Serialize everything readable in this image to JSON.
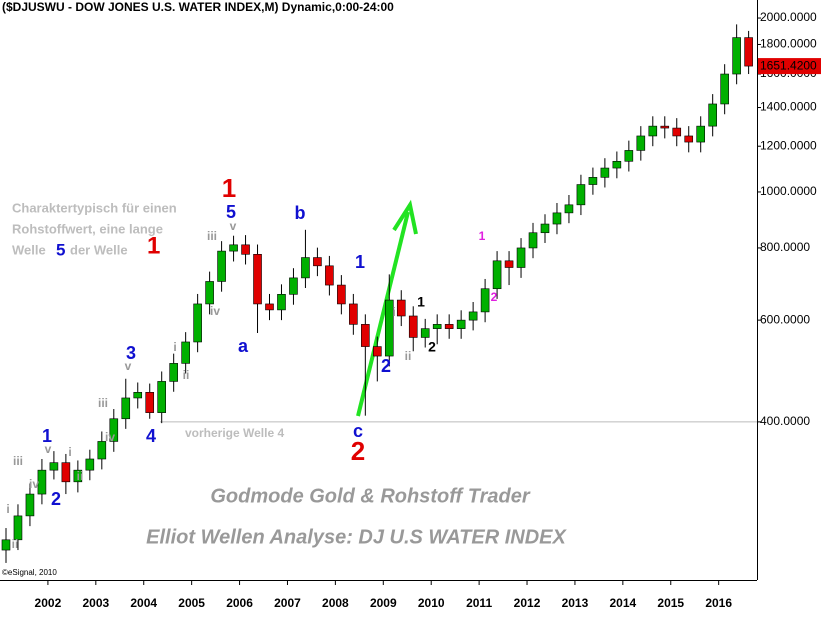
{
  "chart_data": {
    "type": "candlestick",
    "title": "($DJUSWU - DOW JONES U.S. WATER INDEX,M) Dynamic,0:00-24:00",
    "copyright": "©eSignal, 2010",
    "log_scale": true,
    "grid": false,
    "up_color": "#00b000",
    "down_color": "#e00000",
    "x": [
      2001.125,
      2001.375,
      2001.625,
      2001.875,
      2002.125,
      2002.375,
      2002.625,
      2002.875,
      2003.125,
      2003.375,
      2003.625,
      2003.875,
      2004.125,
      2004.375,
      2004.625,
      2004.875,
      2005.125,
      2005.375,
      2005.625,
      2005.875,
      2006.125,
      2006.375,
      2006.625,
      2006.875,
      2007.125,
      2007.375,
      2007.625,
      2007.875,
      2008.125,
      2008.375,
      2008.625,
      2008.875,
      2009.125,
      2009.375,
      2009.625,
      2009.875,
      2010.125,
      2010.375,
      2010.625,
      2010.875,
      2011.125,
      2011.375,
      2011.625,
      2011.875,
      2012.125,
      2012.375,
      2012.625,
      2012.875,
      2013.125,
      2013.375,
      2013.625,
      2013.875,
      2014.125,
      2014.375,
      2014.625,
      2014.875,
      2015.125,
      2015.375,
      2015.625,
      2015.875,
      2016.125,
      2016.375,
      2016.625
    ],
    "open": [
      240,
      250,
      275,
      300,
      330,
      340,
      315,
      330,
      345,
      370,
      405,
      440,
      450,
      415,
      470,
      505,
      550,
      640,
      700,
      790,
      810,
      780,
      640,
      625,
      665,
      710,
      770,
      745,
      690,
      640,
      590,
      540,
      520,
      650,
      610,
      560,
      580,
      590,
      580,
      600,
      620,
      680,
      760,
      740,
      800,
      850,
      880,
      920,
      950,
      1030,
      1060,
      1100,
      1130,
      1180,
      1250,
      1300,
      1290,
      1250,
      1220,
      1300,
      1420,
      1600,
      1850
    ],
    "high": [
      262,
      288,
      313,
      345,
      356,
      352,
      343,
      358,
      385,
      421,
      475,
      468,
      466,
      489,
      525,
      572,
      666,
      728,
      822,
      840,
      842,
      811,
      666,
      692,
      738,
      860,
      801,
      775,
      718,
      666,
      614,
      562,
      720,
      676,
      634,
      603,
      614,
      614,
      624,
      645,
      707,
      790,
      790,
      832,
      884,
      915,
      957,
      988,
      1071,
      1102,
      1144,
      1175,
      1227,
      1300,
      1352,
      1352,
      1342,
      1300,
      1352,
      1477,
      1664,
      1950,
      1900
    ],
    "low": [
      228,
      240,
      264,
      288,
      318,
      300,
      302,
      317,
      331,
      355,
      389,
      422,
      405,
      398,
      451,
      485,
      528,
      614,
      672,
      758,
      749,
      570,
      600,
      600,
      638,
      682,
      715,
      662,
      614,
      566,
      410,
      470,
      499,
      586,
      530,
      538,
      545,
      557,
      557,
      576,
      595,
      653,
      690,
      710,
      768,
      816,
      845,
      883,
      912,
      989,
      1018,
      1056,
      1085,
      1133,
      1200,
      1238,
      1200,
      1171,
      1171,
      1248,
      1363,
      1536,
      1600
    ],
    "close": [
      250,
      275,
      300,
      330,
      340,
      315,
      330,
      345,
      370,
      405,
      440,
      450,
      415,
      470,
      505,
      550,
      640,
      700,
      790,
      810,
      780,
      640,
      625,
      665,
      710,
      770,
      745,
      690,
      640,
      590,
      540,
      520,
      650,
      610,
      560,
      580,
      590,
      580,
      600,
      620,
      680,
      760,
      740,
      800,
      850,
      880,
      920,
      950,
      1030,
      1060,
      1100,
      1130,
      1180,
      1250,
      1300,
      1290,
      1250,
      1220,
      1300,
      1420,
      1600,
      1850,
      1651.42
    ],
    "last_close_label": "1651.4200",
    "xlim": [
      2001.0,
      2016.8
    ],
    "xticks": [
      2002,
      2003,
      2004,
      2005,
      2006,
      2007,
      2008,
      2009,
      2010,
      2011,
      2012,
      2013,
      2014,
      2015,
      2016
    ],
    "ylim": [
      213,
      2149
    ],
    "yticks": [
      {
        "value": 400,
        "label": "400.0000"
      },
      {
        "value": 600,
        "label": "600.0000"
      },
      {
        "value": 800,
        "label": "800.0000"
      },
      {
        "value": 1000,
        "label": "1000.0000"
      },
      {
        "value": 1200,
        "label": "1200.0000"
      },
      {
        "value": 1400,
        "label": "1400.0000"
      },
      {
        "value": 1600,
        "label": "1600.0000"
      },
      {
        "value": 1800,
        "label": "1800.0000"
      },
      {
        "value": 2000,
        "label": "2000.0000"
      }
    ],
    "reference_line": {
      "value": 400,
      "label": "vorherige Welle 4"
    },
    "waves": [
      "i",
      "ii",
      "iii",
      "iv",
      "v",
      "1",
      "2",
      "i",
      "ii",
      "iii",
      "iv",
      "v",
      "3",
      "4",
      "i",
      "ii",
      "iii",
      "iv",
      "v",
      "5",
      "1",
      "a",
      "b",
      "1",
      "c",
      "2",
      "2",
      "i",
      "ii",
      "1",
      "2",
      "1",
      "2"
    ],
    "note": [
      "Charaktertypisch für einen",
      "Rohstoffwert, eine lange",
      "Welle",
      "5",
      "der Welle",
      "1"
    ],
    "watermark": [
      "Godmode Gold & Rohstoff Trader",
      "Elliot Wellen Analyse: DJ U.S WATER INDEX"
    ]
  }
}
